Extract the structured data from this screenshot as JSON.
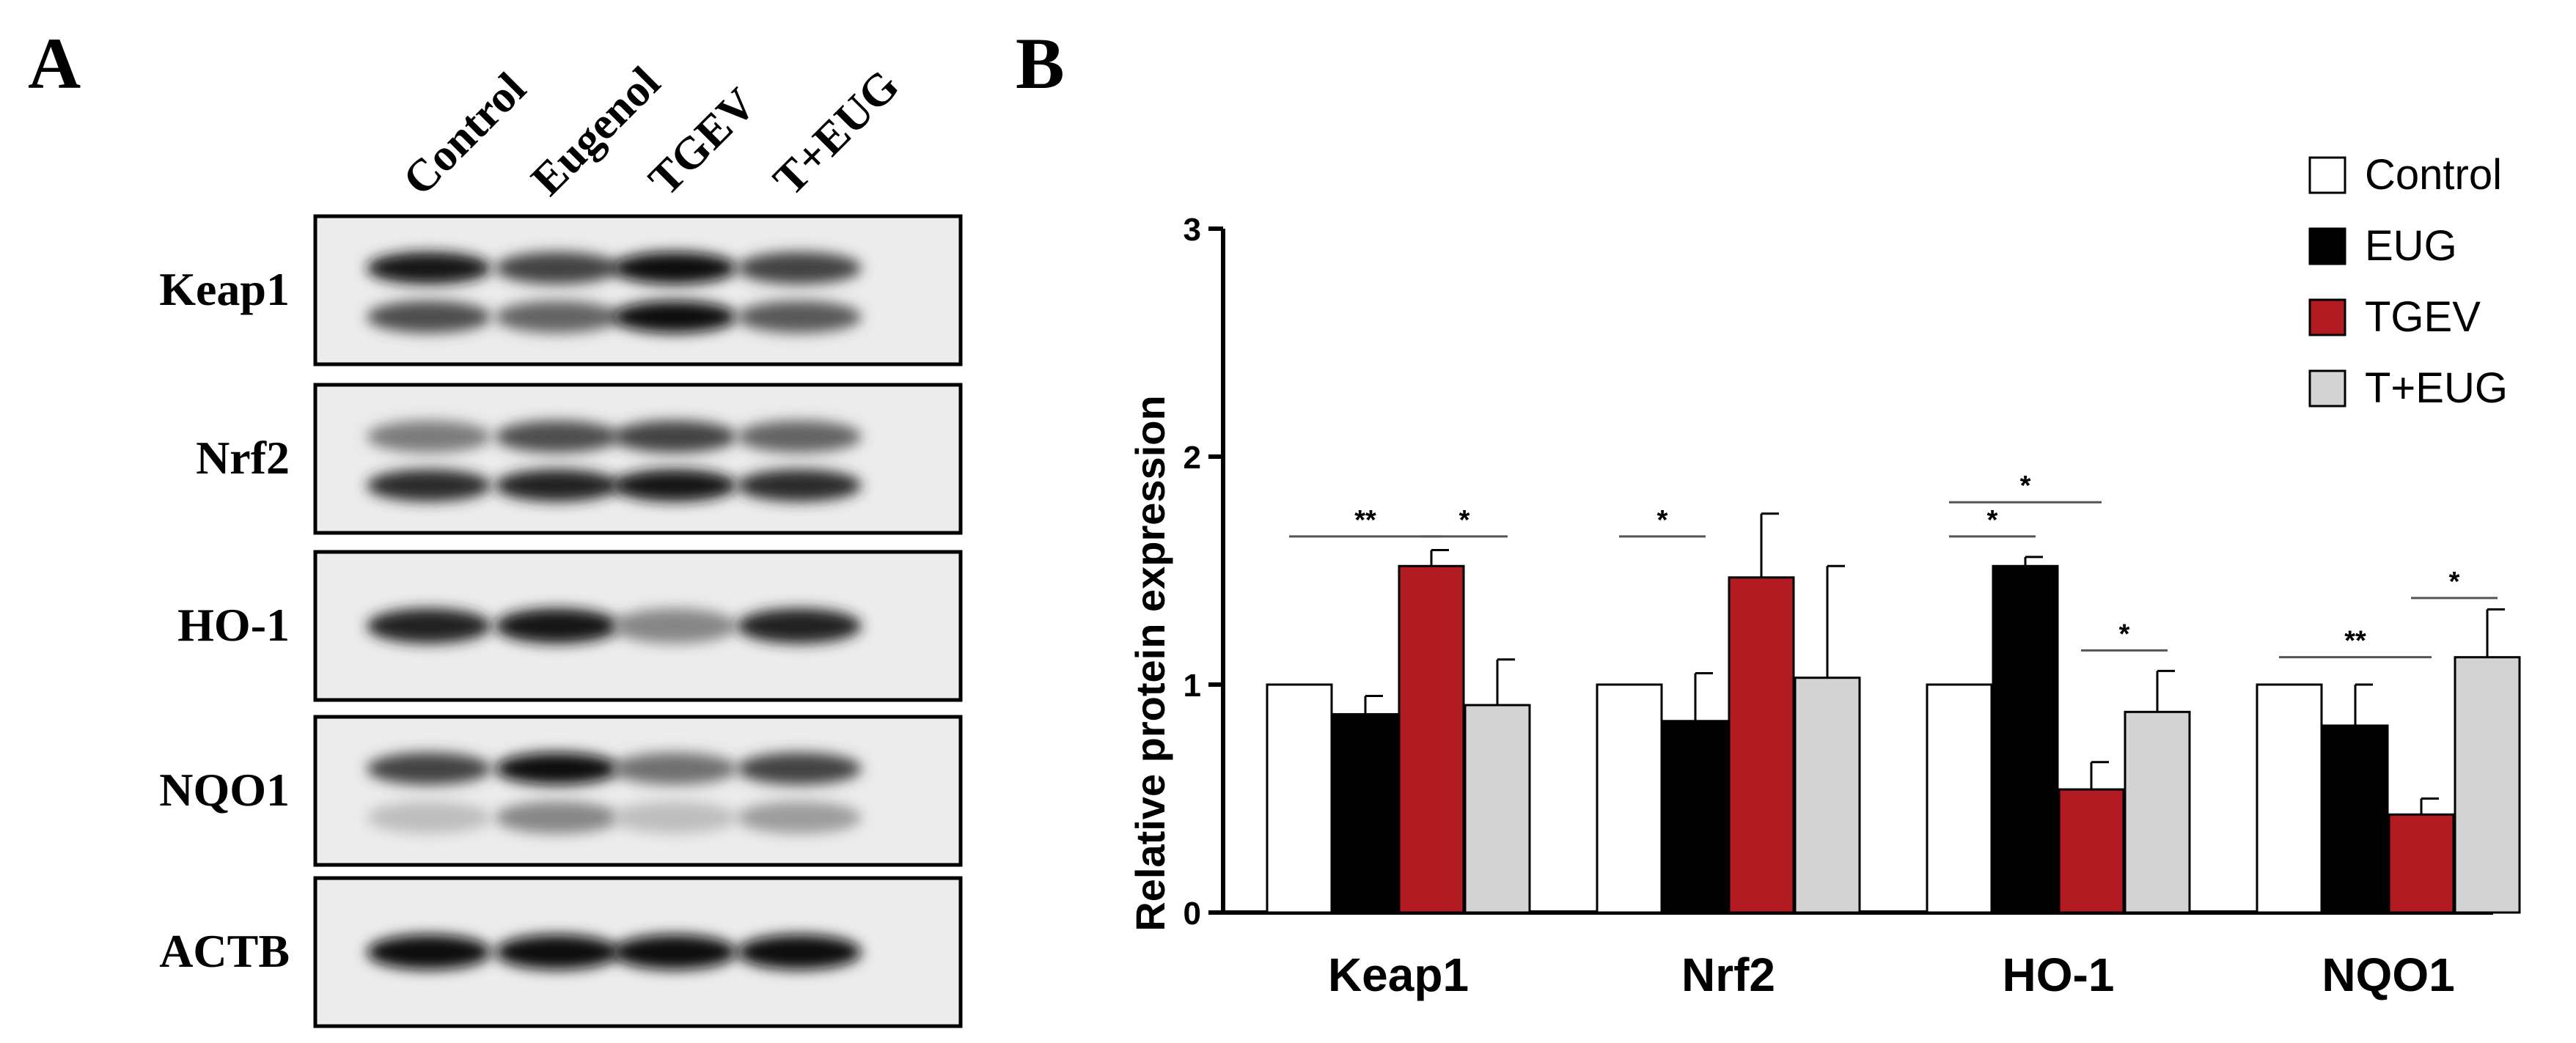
{
  "panels": {
    "a": {
      "label": "A"
    },
    "b": {
      "label": "B"
    }
  },
  "blot": {
    "lanes": [
      "Control",
      "Eugenol",
      "TGEV",
      "T+EUG"
    ],
    "rows": [
      {
        "label": "Keap1",
        "bands": [
          [
            0.95,
            0.7
          ],
          [
            0.75,
            0.6
          ],
          [
            1.0,
            1.0
          ],
          [
            0.75,
            0.65
          ]
        ]
      },
      {
        "label": "Nrf2",
        "bands": [
          [
            0.5,
            0.85
          ],
          [
            0.7,
            0.9
          ],
          [
            0.75,
            0.95
          ],
          [
            0.6,
            0.85
          ]
        ]
      },
      {
        "label": "HO-1",
        "bands": [
          [
            0.9
          ],
          [
            0.95
          ],
          [
            0.45
          ],
          [
            0.9
          ]
        ]
      },
      {
        "label": "NQO1",
        "bands": [
          [
            0.75,
            0.2
          ],
          [
            1.0,
            0.45
          ],
          [
            0.55,
            0.2
          ],
          [
            0.75,
            0.35
          ]
        ]
      },
      {
        "label": "ACTB",
        "bands": [
          [
            1.0
          ],
          [
            1.0
          ],
          [
            1.0
          ],
          [
            1.0
          ]
        ]
      }
    ]
  },
  "chart_data": {
    "type": "bar",
    "title": "",
    "xlabel": "",
    "ylabel": "Relative protein expression",
    "ylim": [
      0,
      3
    ],
    "yticks": [
      "0",
      "1",
      "2",
      "3"
    ],
    "grid": false,
    "legend_position": "top-right",
    "categories": [
      "Keap1",
      "Nrf2",
      "HO-1",
      "NQO1"
    ],
    "series": [
      {
        "name": "Control",
        "color": "#ffffff",
        "values": [
          1.0,
          1.0,
          1.0,
          1.0
        ],
        "errors": [
          0,
          0,
          0,
          0
        ]
      },
      {
        "name": "EUG",
        "color": "#000000",
        "values": [
          0.87,
          0.84,
          1.52,
          0.82
        ],
        "errors": [
          0.08,
          0.21,
          0.04,
          0.18
        ]
      },
      {
        "name": "TGEV",
        "color": "#b31b23",
        "values": [
          1.52,
          1.47,
          0.54,
          0.43
        ],
        "errors": [
          0.07,
          0.28,
          0.12,
          0.07
        ]
      },
      {
        "name": "T+EUG",
        "color": "#d3d3d3",
        "values": [
          0.91,
          1.03,
          0.88,
          1.12
        ],
        "errors": [
          0.2,
          0.49,
          0.18,
          0.21
        ]
      }
    ],
    "significance": [
      {
        "category": 0,
        "from": 0,
        "to": 2,
        "y": 1.65,
        "label": "**"
      },
      {
        "category": 0,
        "from": 2,
        "to": 3,
        "y": 1.65,
        "label": "*"
      },
      {
        "category": 1,
        "from": 0,
        "to": 1,
        "y": 1.65,
        "label": "*"
      },
      {
        "category": 2,
        "from": 0,
        "to": 1,
        "y": 1.65,
        "label": "*"
      },
      {
        "category": 2,
        "from": 0,
        "to": 2,
        "y": 1.8,
        "label": "*"
      },
      {
        "category": 2,
        "from": 2,
        "to": 3,
        "y": 1.15,
        "label": "*"
      },
      {
        "category": 3,
        "from": 0,
        "to": 2,
        "y": 1.12,
        "label": "**"
      },
      {
        "category": 3,
        "from": 2,
        "to": 3,
        "y": 1.38,
        "label": "*"
      }
    ]
  }
}
